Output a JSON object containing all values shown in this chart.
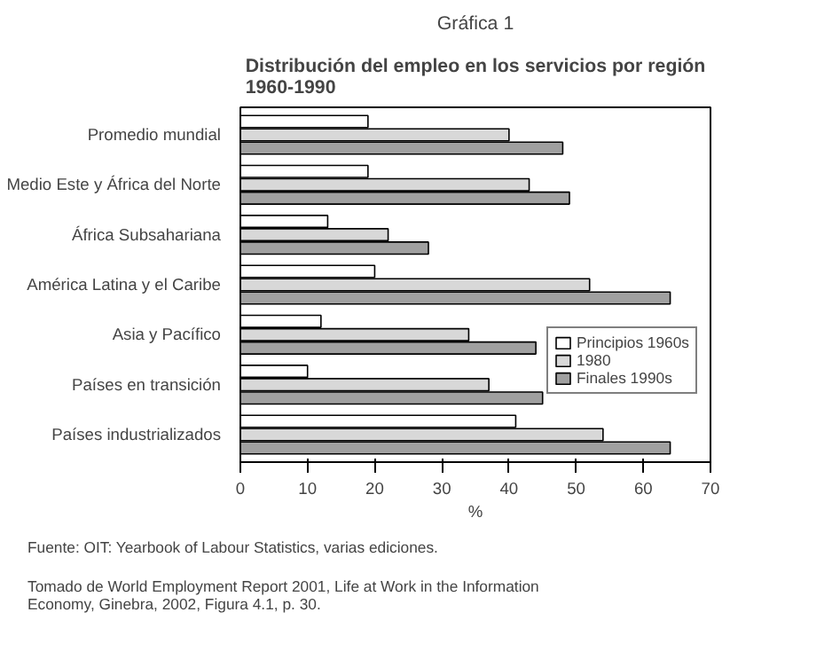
{
  "chart_data": {
    "type": "bar",
    "orientation": "horizontal",
    "title": "Gráfica 1",
    "subtitle": "Distribución del empleo en los servicios por región\n1960-1990",
    "xlabel": "%",
    "categories": [
      "Promedio mundial",
      "Medio Este y África del Norte",
      "África Subsahariana",
      "América Latina y el Caribe",
      "Asia y Pacífico",
      "Países en transición",
      "Países industrializados"
    ],
    "series": [
      {
        "name": "Principios 1960s",
        "color": "#ffffff",
        "values": [
          19,
          19,
          13,
          20,
          12,
          10,
          41
        ]
      },
      {
        "name": "1980",
        "color": "#d8d8d8",
        "values": [
          40,
          43,
          22,
          52,
          34,
          37,
          54
        ]
      },
      {
        "name": "Finales 1990s",
        "color": "#a0a0a0",
        "values": [
          48,
          49,
          28,
          64,
          44,
          45,
          64
        ]
      }
    ],
    "xlim": [
      0,
      70
    ],
    "xticks": [
      0,
      10,
      20,
      30,
      40,
      50,
      60,
      70
    ],
    "grid": false,
    "legend": "right",
    "annotations": [
      "Fuente: OIT: Yearbook of Labour Statistics, varias ediciones.",
      "Tomado de World Employment Report 2001, Life at Work in the Information\nEconomy, Ginebra, 2002, Figura 4.1, p. 30."
    ]
  }
}
